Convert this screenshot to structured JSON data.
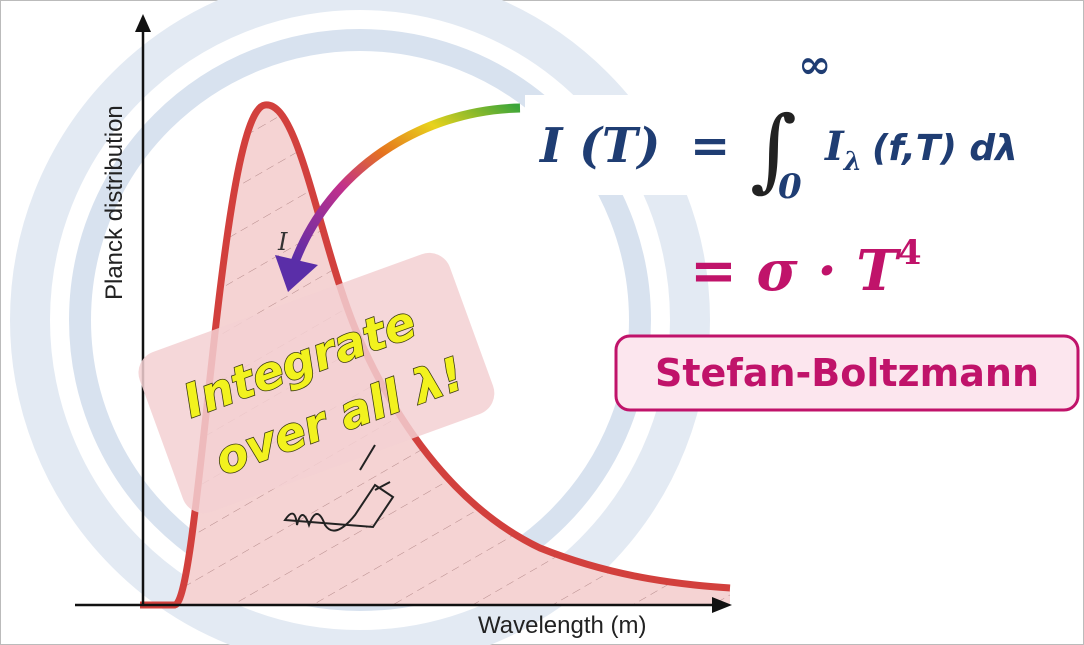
{
  "axes": {
    "y_label": "Planck distribution",
    "x_label": "Wavelength (m)"
  },
  "callout": {
    "line1": "Integrate",
    "line2": "over all λ!"
  },
  "arrow_label": "I",
  "equation": {
    "lhs": "I (T)",
    "equals": "=",
    "upper": "∞",
    "lower": "0",
    "integrand": "I",
    "subscript": "λ",
    "args": "(f,T) dλ",
    "result": "= σ · T",
    "exponent": "4"
  },
  "law_label": "Stefan-Boltzmann"
}
